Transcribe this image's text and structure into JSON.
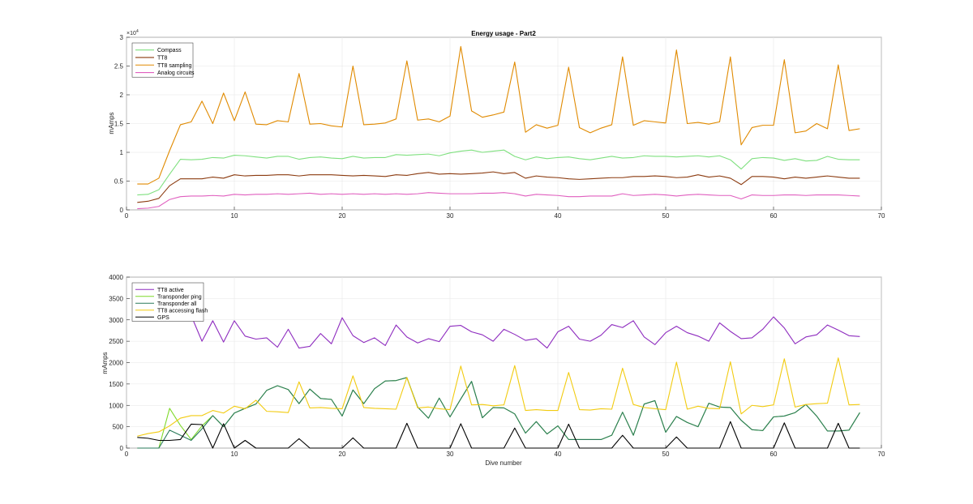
{
  "chart_data": [
    {
      "type": "line",
      "title": "Energy usage - Part2",
      "xlabel": "",
      "ylabel": "mAmps",
      "xlim": [
        0,
        70
      ],
      "ylim": [
        0,
        30000
      ],
      "xticks": [
        0,
        10,
        20,
        30,
        40,
        50,
        60,
        70
      ],
      "yticks": [
        0,
        5000,
        10000,
        15000,
        20000,
        25000,
        30000
      ],
      "ytick_labels": [
        "0",
        "0.5",
        "1",
        "1.5",
        "2",
        "2.5",
        "3"
      ],
      "y_exponent_label": "×10",
      "y_exponent_power": "4",
      "grid": true,
      "legend_position": "top-left",
      "x": [
        1,
        2,
        3,
        4,
        5,
        6,
        7,
        8,
        9,
        10,
        11,
        12,
        13,
        14,
        15,
        16,
        17,
        18,
        19,
        20,
        21,
        22,
        23,
        24,
        25,
        26,
        27,
        28,
        29,
        30,
        31,
        32,
        33,
        34,
        35,
        36,
        37,
        38,
        39,
        40,
        41,
        42,
        43,
        44,
        45,
        46,
        47,
        48,
        49,
        50,
        51,
        52,
        53,
        54,
        55,
        56,
        57,
        58,
        59,
        60,
        61,
        62,
        63,
        64,
        65,
        66,
        67,
        68
      ],
      "series": [
        {
          "name": "Compass",
          "color": "#7fe07f",
          "values": [
            2600,
            2700,
            3500,
            6200,
            8800,
            8700,
            8800,
            9100,
            9000,
            9500,
            9400,
            9200,
            9000,
            9300,
            9300,
            8800,
            9100,
            9200,
            9000,
            8900,
            9300,
            9000,
            9100,
            9100,
            9600,
            9500,
            9600,
            9700,
            9400,
            9900,
            10200,
            10400,
            10000,
            10200,
            10400,
            9300,
            8700,
            9200,
            8900,
            9100,
            9200,
            8900,
            8700,
            9000,
            9300,
            9000,
            9100,
            9400,
            9300,
            9300,
            9200,
            9300,
            9400,
            9200,
            9400,
            8700,
            7100,
            8900,
            9100,
            9000,
            8600,
            8900,
            8500,
            8600,
            9300,
            8800,
            8700,
            8700
          ]
        },
        {
          "name": "TT8",
          "color": "#8b3a0f",
          "values": [
            1300,
            1500,
            2000,
            4200,
            5400,
            5400,
            5400,
            5700,
            5500,
            6100,
            5900,
            6000,
            6000,
            6100,
            6100,
            5900,
            6100,
            6100,
            6100,
            6000,
            5900,
            6000,
            5900,
            5800,
            6100,
            6000,
            6300,
            6500,
            6200,
            6300,
            6200,
            6300,
            6400,
            6600,
            6300,
            6500,
            5500,
            5900,
            5700,
            5600,
            5400,
            5300,
            5400,
            5500,
            5600,
            5600,
            5800,
            5800,
            5900,
            5800,
            5600,
            5700,
            6100,
            5700,
            5900,
            5500,
            4400,
            5800,
            5800,
            5700,
            5400,
            5700,
            5500,
            5700,
            5900,
            5700,
            5500,
            5500
          ]
        },
        {
          "name": "TT8 sampling",
          "color": "#e08a00",
          "values": [
            4500,
            4500,
            5500,
            10300,
            14800,
            15300,
            18900,
            15000,
            20300,
            15500,
            20500,
            14900,
            14800,
            15500,
            15300,
            23700,
            14900,
            15000,
            14600,
            14400,
            25000,
            14800,
            14900,
            15100,
            15800,
            25900,
            15600,
            15800,
            15300,
            16300,
            28400,
            17200,
            16100,
            16500,
            17000,
            25700,
            13500,
            14800,
            14200,
            14700,
            24800,
            14300,
            13400,
            14200,
            14800,
            26600,
            14700,
            15500,
            15300,
            15100,
            27800,
            15000,
            15200,
            14900,
            15300,
            26600,
            11300,
            14300,
            14700,
            14700,
            26100,
            13400,
            13700,
            15000,
            14100,
            25200,
            13800,
            14100
          ]
        },
        {
          "name": "Analog circuits",
          "color": "#e05fbf",
          "values": [
            200,
            300,
            600,
            1800,
            2300,
            2400,
            2400,
            2500,
            2400,
            2700,
            2600,
            2700,
            2700,
            2800,
            2700,
            2800,
            2900,
            2700,
            2800,
            2700,
            2800,
            2700,
            2800,
            2700,
            2800,
            2700,
            2800,
            3000,
            2900,
            2800,
            2800,
            2800,
            2900,
            2900,
            3000,
            2800,
            2400,
            2700,
            2600,
            2500,
            2300,
            2300,
            2400,
            2400,
            2400,
            2800,
            2500,
            2600,
            2700,
            2600,
            2400,
            2600,
            2700,
            2600,
            2500,
            2500,
            1900,
            2600,
            2500,
            2500,
            2600,
            2600,
            2500,
            2600,
            2600,
            2600,
            2500,
            2400
          ]
        }
      ]
    },
    {
      "type": "line",
      "title": "",
      "xlabel": "Dive number",
      "ylabel": "mAmps",
      "xlim": [
        0,
        70
      ],
      "ylim": [
        0,
        4000
      ],
      "xticks": [
        0,
        10,
        20,
        30,
        40,
        50,
        60,
        70
      ],
      "yticks": [
        0,
        500,
        1000,
        1500,
        2000,
        2500,
        3000,
        3500,
        4000
      ],
      "grid": true,
      "legend_position": "top-left",
      "x": [
        1,
        2,
        3,
        4,
        5,
        6,
        7,
        8,
        9,
        10,
        11,
        12,
        13,
        14,
        15,
        16,
        17,
        18,
        19,
        20,
        21,
        22,
        23,
        24,
        25,
        26,
        27,
        28,
        29,
        30,
        31,
        32,
        33,
        34,
        35,
        36,
        37,
        38,
        39,
        40,
        41,
        42,
        43,
        44,
        45,
        46,
        47,
        48,
        49,
        50,
        51,
        52,
        53,
        54,
        55,
        56,
        57,
        58,
        59,
        60,
        61,
        62,
        63,
        64,
        65,
        66,
        67,
        68
      ],
      "series": [
        {
          "name": "TT8 active",
          "color": "#8e2cbf",
          "values": [
            null,
            null,
            null,
            null,
            null,
            3100,
            2500,
            2980,
            2480,
            2980,
            2620,
            2550,
            2580,
            2360,
            2780,
            2340,
            2380,
            2680,
            2440,
            3050,
            2630,
            2470,
            2580,
            2400,
            2880,
            2600,
            2460,
            2560,
            2490,
            2850,
            2870,
            2720,
            2650,
            2500,
            2780,
            2660,
            2520,
            2560,
            2340,
            2720,
            2850,
            2550,
            2500,
            2640,
            2890,
            2820,
            2980,
            2600,
            2420,
            2700,
            2850,
            2700,
            2620,
            2500,
            2930,
            2730,
            2560,
            2580,
            2780,
            3070,
            2810,
            2440,
            2600,
            2650,
            2880,
            2760,
            2630,
            2610
          ]
        },
        {
          "name": "Transponder ping",
          "color": "#7fd92a",
          "values": [
            0,
            0,
            0,
            930,
            530,
            200,
            520,
            760,
            500,
            820,
            930,
            1030,
            1350,
            1460,
            1370,
            1040,
            1380,
            1160,
            1140,
            750,
            1360,
            1040,
            1390,
            1570,
            1580,
            1650,
            960,
            700,
            1170,
            730,
            1150,
            1560,
            710,
            950,
            940,
            800,
            350,
            620,
            330,
            520,
            200,
            200,
            200,
            200,
            300,
            840,
            300,
            1030,
            1110,
            370,
            740,
            600,
            500,
            1050,
            960,
            950,
            650,
            430,
            410,
            730,
            750,
            830,
            1020,
            750,
            400,
            400,
            420,
            830
          ]
        },
        {
          "name": "Transponder all",
          "color": "#2a7a5a",
          "values": [
            0,
            0,
            0,
            420,
            300,
            180,
            450,
            760,
            500,
            820,
            930,
            1030,
            1350,
            1460,
            1370,
            1040,
            1380,
            1160,
            1140,
            750,
            1360,
            1040,
            1390,
            1570,
            1580,
            1650,
            960,
            700,
            1170,
            730,
            1150,
            1560,
            710,
            950,
            940,
            800,
            350,
            620,
            330,
            520,
            200,
            200,
            200,
            200,
            300,
            840,
            300,
            1030,
            1110,
            370,
            740,
            600,
            500,
            1050,
            960,
            950,
            650,
            430,
            410,
            730,
            750,
            830,
            1020,
            750,
            400,
            400,
            420,
            830
          ]
        },
        {
          "name": "TT8 accessing flash",
          "color": "#f2cb10",
          "values": [
            280,
            340,
            380,
            520,
            700,
            760,
            760,
            880,
            820,
            980,
            920,
            1120,
            860,
            850,
            830,
            1550,
            940,
            950,
            930,
            920,
            1690,
            950,
            930,
            920,
            910,
            1650,
            940,
            960,
            920,
            900,
            1920,
            1010,
            1020,
            990,
            1010,
            1930,
            880,
            900,
            880,
            880,
            1770,
            900,
            890,
            920,
            910,
            1870,
            1020,
            950,
            920,
            900,
            2010,
            910,
            980,
            930,
            920,
            2020,
            800,
            1000,
            970,
            1010,
            2090,
            960,
            1020,
            1040,
            1050,
            2110,
            1010,
            1020
          ]
        },
        {
          "name": "GPS",
          "color": "#000000",
          "values": [
            250,
            230,
            180,
            180,
            200,
            560,
            550,
            0,
            570,
            0,
            180,
            0,
            0,
            0,
            0,
            220,
            0,
            0,
            0,
            0,
            240,
            0,
            0,
            0,
            0,
            580,
            0,
            0,
            0,
            0,
            570,
            0,
            0,
            0,
            0,
            470,
            0,
            0,
            0,
            0,
            560,
            0,
            0,
            0,
            0,
            300,
            0,
            0,
            0,
            0,
            260,
            0,
            0,
            0,
            0,
            620,
            0,
            0,
            0,
            0,
            590,
            0,
            0,
            0,
            0,
            580,
            0,
            0
          ]
        }
      ]
    }
  ]
}
